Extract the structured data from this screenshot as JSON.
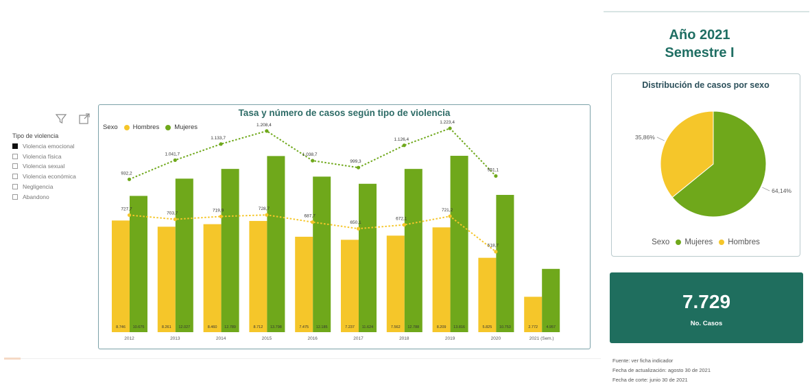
{
  "slicer": {
    "title": "Tipo de violencia",
    "items": [
      {
        "label": "Violencia emocional",
        "checked": true
      },
      {
        "label": "Violencia física",
        "checked": false
      },
      {
        "label": "Violencia sexual",
        "checked": false
      },
      {
        "label": "Violencia económica",
        "checked": false
      },
      {
        "label": "Negligencia",
        "checked": false
      },
      {
        "label": "Abandono",
        "checked": false
      }
    ]
  },
  "icons": {
    "filter": "filter-icon",
    "focus": "focus-mode-icon"
  },
  "legend": {
    "title": "Sexo",
    "hombres": "Hombres",
    "mujeres": "Mujeres"
  },
  "colors": {
    "hombres": "#f5c62a",
    "mujeres": "#6fa81b",
    "kpi_bg": "#1f6e5e",
    "title": "#2d6b66"
  },
  "chart_data": [
    {
      "type": "bar",
      "title": "Tasa y número de casos según tipo de violencia",
      "categories": [
        "2012",
        "2013",
        "2014",
        "2015",
        "2016",
        "2017",
        "2018",
        "2019",
        "2020",
        "2021 (Sem.)"
      ],
      "series": [
        {
          "name": "Hombres",
          "values": [
            8746,
            8261,
            8460,
            8712,
            7475,
            7237,
            7562,
            8209,
            5825,
            2772
          ],
          "labels": [
            "8.746",
            "8.261",
            "8.460",
            "8.712",
            "7.475",
            "7.237",
            "7.562",
            "8.209",
            "5.825",
            "2.772"
          ]
        },
        {
          "name": "Mujeres",
          "values": [
            10675,
            12027,
            12789,
            13798,
            12185,
            11624,
            12788,
            13816,
            10753,
            4957
          ],
          "labels": [
            "10.675",
            "12.027",
            "12.789",
            "13.798",
            "12.185",
            "11.624",
            "12.788",
            "13.816",
            "10.753",
            "4.957"
          ]
        }
      ],
      "lines": [
        {
          "name": "Mujeres",
          "values": [
            932.2,
            1041.7,
            1133.7,
            1208.4,
            1038.7,
            999.3,
            1126.4,
            1223.4,
            951.1
          ],
          "labels": [
            "932,2",
            "1.041,7",
            "1.133,7",
            "1.208,4",
            "1.038,7",
            "999,3",
            "1.126,4",
            "1.223,4",
            "951,1"
          ]
        },
        {
          "name": "Hombres",
          "values": [
            727.7,
            703.7,
            719.9,
            728.7,
            687.7,
            650.1,
            672.1,
            721.2,
            518.7
          ],
          "labels": [
            "727,7",
            "703,7",
            "719,9",
            "728,7",
            "687,7",
            "650,1",
            "672,1",
            "721,2",
            "518,7"
          ]
        }
      ]
    },
    {
      "type": "pie",
      "title": "Distribución de casos por sexo",
      "labels": [
        "Mujeres",
        "Hombres"
      ],
      "values": [
        64.14,
        35.86
      ],
      "value_labels": [
        "64,14%",
        "35,86%"
      ],
      "legend_title": "Sexo"
    }
  ],
  "header": {
    "year": "Año 2021",
    "semester": "Semestre I"
  },
  "kpi": {
    "value": "7.729",
    "label": "No. Casos"
  },
  "footnotes": [
    "Fuente: ver ficha indicador",
    "Fecha de actualización: agosto 30 de 2021",
    "Fecha de corte: junio 30 de 2021"
  ]
}
